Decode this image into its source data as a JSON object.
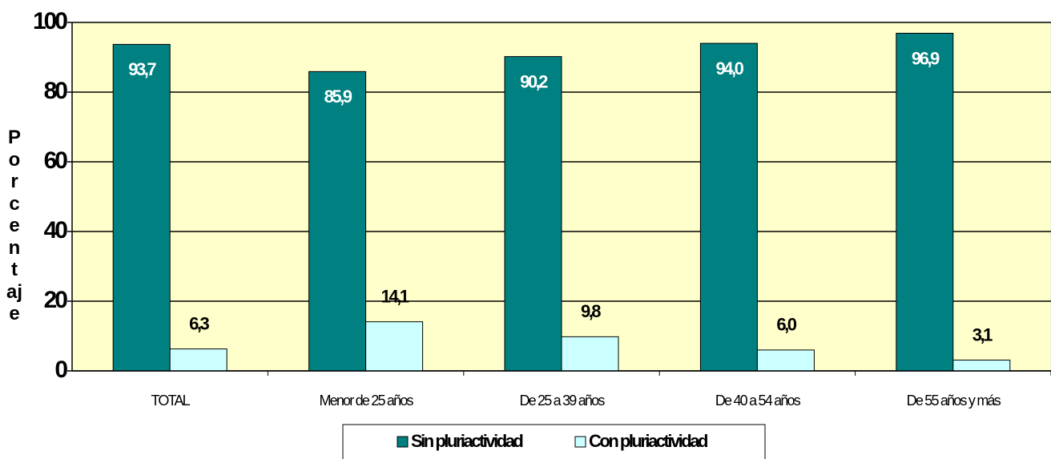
{
  "chart_data": {
    "type": "bar",
    "y_label": "Porcentaje",
    "categories": [
      "TOTAL",
      "Menor de 25 años",
      "De 25 a 39 años",
      "De 40 a 54 años",
      "De 55 años y más"
    ],
    "series": [
      {
        "name": "Sin pluriactividad",
        "color": "#008080",
        "values": [
          93.7,
          85.9,
          90.2,
          94.0,
          96.9
        ],
        "value_labels": [
          "93,7",
          "85,9",
          "90,2",
          "94,0",
          "96,9"
        ]
      },
      {
        "name": "Con pluriactividad",
        "color": "#ccffff",
        "values": [
          6.3,
          14.1,
          9.8,
          6.0,
          3.1
        ],
        "value_labels": [
          "6,3",
          "14,1",
          "9,8",
          "6,0",
          "3,1"
        ]
      }
    ],
    "ylim": [
      0,
      100
    ],
    "yticks": [
      0,
      20,
      40,
      60,
      80,
      100
    ],
    "grid": true,
    "legend": "bottom"
  }
}
